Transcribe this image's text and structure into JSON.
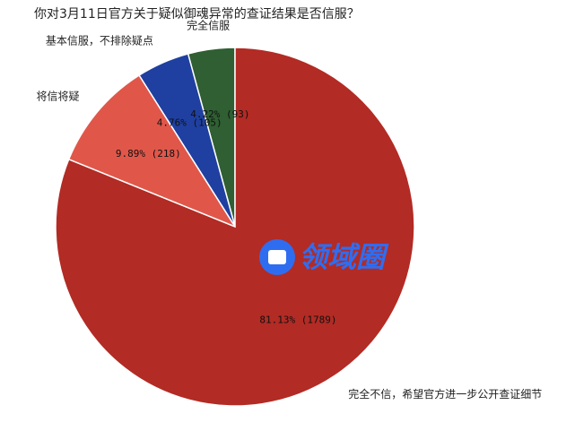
{
  "chart_data": {
    "type": "pie",
    "title": "你对3月11日官方关于疑似御魂异常的查证结果是否信服？",
    "categories": [
      "完全信服",
      "基本信服，不排除疑点",
      "将信将疑",
      "完全不信，希望官方进一步公开查证细节"
    ],
    "values": [
      4.22,
      4.76,
      9.89,
      81.13
    ],
    "value_labels": [
      "4.22% (93)",
      "4.76% (105)",
      "9.89% (218)",
      "81.13% (1789)"
    ],
    "colors": [
      "#2f5f32",
      "#1f40a0",
      "#e0574a",
      "#b22b24"
    ],
    "watermark": "领域圈"
  }
}
